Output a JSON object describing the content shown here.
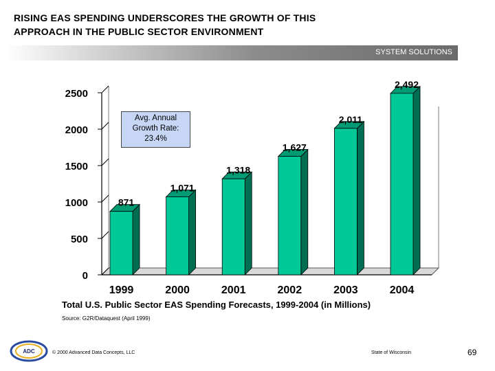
{
  "slide": {
    "title_line1": "RISING EAS SPENDING UNDERSCORES THE GROWTH OF THIS",
    "title_line2": "APPROACH IN THE PUBLIC SECTOR ENVIRONMENT",
    "banner": "SYSTEM SOLUTIONS",
    "caption": "Total U.S. Public Sector EAS Spending Forecasts, 1999-2004 (in Millions)",
    "source": "Source: G2R/Dataquest (April 1999)",
    "copyright": "© 2000 Advanced Data Concepts, LLC",
    "state": "State of Wisconsin",
    "page_number": "69",
    "logo_text": "ADC",
    "growth_box": {
      "line1": "Avg. Annual",
      "line2": "Growth Rate:",
      "line3": "23.4%"
    },
    "colors": {
      "bar_front": "#00c896",
      "bar_side": "#006e52",
      "bar_top": "#009a74",
      "growth_box_fill": "#c6d6f4",
      "banner_dark": "#6a6a6a"
    }
  },
  "chart_data": {
    "type": "bar",
    "categories": [
      "1999",
      "2000",
      "2001",
      "2002",
      "2003",
      "2004"
    ],
    "values": [
      871,
      1071,
      1318,
      1627,
      2011,
      2492
    ],
    "value_labels": [
      "871",
      "1,071",
      "1,318",
      "1,627",
      "2,011",
      "2,492"
    ],
    "yticks": [
      0,
      500,
      1000,
      1500,
      2000,
      2500
    ],
    "ylim": [
      0,
      2500
    ],
    "grid": false,
    "legend": "none",
    "style": "3d"
  }
}
